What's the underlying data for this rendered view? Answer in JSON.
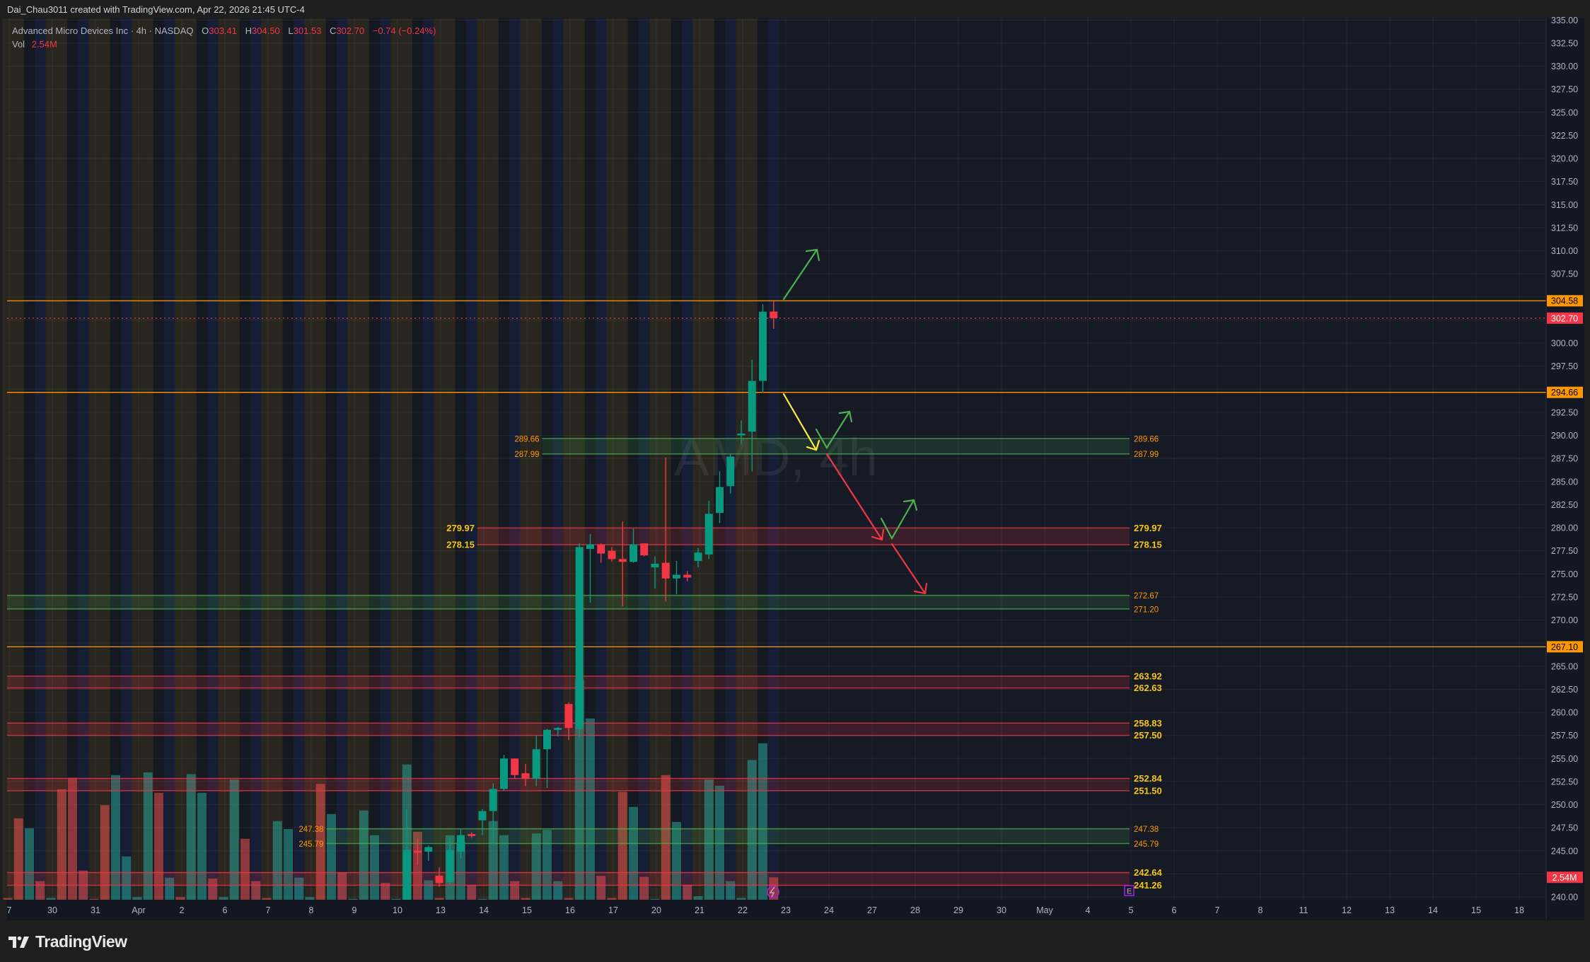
{
  "header": {
    "attribution": "Dai_Chau3011 created with TradingView.com, Apr 22, 2026 21:45 UTC-4"
  },
  "legend": {
    "symbol": "Advanced Micro Devices Inc · 4h · NASDAQ",
    "o_label": "O",
    "open": "303.41",
    "h_label": "H",
    "high": "304.50",
    "l_label": "L",
    "low": "301.53",
    "c_label": "C",
    "close": "302.70",
    "change": "−0.74 (−0.24%)",
    "vol_label": "Vol",
    "vol": "2.54M"
  },
  "watermark": "AMD, 4h",
  "footer": {
    "logo_text": "TradingView"
  },
  "colors": {
    "up": "#089981",
    "down": "#f23645",
    "level": "#ff9800",
    "zone_red": "#f23645",
    "zone_green": "#4caf50",
    "zone_label": "#f5c518",
    "earnings": "#a020f0"
  },
  "chart_data": {
    "type": "candlestick",
    "title": "Advanced Micro Devices Inc · 4h · NASDAQ",
    "ylim": [
      240,
      335
    ],
    "price_ticks": [
      "240.00",
      "245.00",
      "247.50",
      "250.00",
      "252.50",
      "255.00",
      "257.50",
      "260.00",
      "262.50",
      "265.00",
      "270.00",
      "272.50",
      "275.00",
      "277.50",
      "280.00",
      "282.50",
      "285.00",
      "287.50",
      "290.00",
      "292.50",
      "297.50",
      "300.00",
      "307.50",
      "310.00",
      "312.50",
      "315.00",
      "317.50",
      "320.00",
      "322.50",
      "325.00",
      "327.50",
      "330.00",
      "332.50",
      "335.00"
    ],
    "x_labels": [
      "7",
      "30",
      "31",
      "Apr",
      "2",
      "6",
      "7",
      "8",
      "9",
      "10",
      "13",
      "14",
      "15",
      "16",
      "17",
      "20",
      "21",
      "22",
      "23",
      "24",
      "27",
      "28",
      "29",
      "30",
      "May",
      "4",
      "5",
      "6",
      "7",
      "8",
      "11",
      "12",
      "13",
      "14",
      "15",
      "18"
    ],
    "bars_per_day": 4,
    "first_candle_bar": 37,
    "candles": [
      [
        239.5,
        249.5,
        239.0,
        245.1
      ],
      [
        245.0,
        246.3,
        243.5,
        244.8
      ],
      [
        244.9,
        245.6,
        243.9,
        245.4
      ],
      [
        242.3,
        243.2,
        241.1,
        241.5
      ],
      [
        241.6,
        246.4,
        241.3,
        245.1
      ],
      [
        244.9,
        247.3,
        244.2,
        246.7
      ],
      [
        246.8,
        247.0,
        246.4,
        246.6
      ],
      [
        248.3,
        249.5,
        246.7,
        249.3
      ],
      [
        249.3,
        252.3,
        245.7,
        251.7
      ],
      [
        251.7,
        255.4,
        251.5,
        255.0
      ],
      [
        255.0,
        255.0,
        252.8,
        253.2
      ],
      [
        253.4,
        254.4,
        252.0,
        252.8
      ],
      [
        252.8,
        257.5,
        252.0,
        256.0
      ],
      [
        256.0,
        258.2,
        251.8,
        258.1
      ],
      [
        258.1,
        258.4,
        257.4,
        258.3
      ],
      [
        260.9,
        261.1,
        257.0,
        258.3
      ],
      [
        258.2,
        278.3,
        257.3,
        277.9
      ],
      [
        277.7,
        279.3,
        271.9,
        278.2
      ],
      [
        278.2,
        278.3,
        276.2,
        277.2
      ],
      [
        277.5,
        277.9,
        276.3,
        276.6
      ],
      [
        276.6,
        280.7,
        271.5,
        276.3
      ],
      [
        276.3,
        279.9,
        276.2,
        278.2
      ],
      [
        278.3,
        278.3,
        276.9,
        277.0
      ],
      [
        275.7,
        276.9,
        273.4,
        276.1
      ],
      [
        276.2,
        287.6,
        272.0,
        274.5
      ],
      [
        274.5,
        276.4,
        272.8,
        274.9
      ],
      [
        274.9,
        275.3,
        274.2,
        274.6
      ],
      [
        276.4,
        277.8,
        275.7,
        277.3
      ],
      [
        277.1,
        282.9,
        276.6,
        281.5
      ],
      [
        281.6,
        286.1,
        280.5,
        284.4
      ],
      [
        284.5,
        288.0,
        283.7,
        287.7
      ],
      [
        290.0,
        291.6,
        289.1,
        290.2
      ],
      [
        290.4,
        298.2,
        286.1,
        295.9
      ],
      [
        295.9,
        304.2,
        294.6,
        303.4
      ],
      [
        303.41,
        304.5,
        301.53,
        302.7
      ]
    ],
    "volume_m": [
      0.2,
      9.2,
      8.1,
      2.1,
      0.2,
      12.5,
      13.8,
      3.3,
      0.1,
      10.7,
      14.1,
      4.9,
      0.3,
      14.4,
      12.1,
      2.5,
      0.3,
      14.2,
      12.1,
      2.4,
      0.3,
      13.6,
      6.9,
      2.1,
      0.2,
      8.9,
      8.0,
      2.5,
      0.3,
      13.1,
      9.7,
      3.1,
      0.1,
      10.1,
      7.3,
      1.9,
      0.1,
      15.3,
      7.7,
      2.2,
      0.2,
      7.3,
      6.5,
      1.7,
      0.1,
      8.9,
      7.3,
      2.1,
      0.2,
      7.5,
      7.9,
      2.1,
      0.2,
      24.9,
      20.5,
      2.7,
      0.2,
      12.2,
      10.5,
      2.6,
      0.1,
      14.1,
      8.8,
      1.7,
      0.4,
      13.6,
      12.9,
      2.1,
      0.2,
      15.8,
      17.7,
      2.54
    ],
    "volume_dir": [
      "d",
      "d",
      "u",
      "d",
      "u",
      "d",
      "d",
      "d",
      "d",
      "d",
      "u",
      "u",
      "u",
      "u",
      "d",
      "u",
      "d",
      "u",
      "u",
      "d",
      "u",
      "u",
      "d",
      "d",
      "d",
      "u",
      "u",
      "u",
      "u",
      "d",
      "u",
      "d",
      "u",
      "u",
      "u",
      "d",
      "u",
      "u",
      "d",
      "u",
      "d",
      "u",
      "u",
      "d",
      "u",
      "u",
      "u",
      "d",
      "d",
      "u",
      "u",
      "u",
      "d",
      "u",
      "u",
      "d",
      "d",
      "d",
      "u",
      "d",
      "u",
      "d",
      "u",
      "d",
      "u",
      "u",
      "u",
      "u",
      "u",
      "u",
      "u",
      "d"
    ],
    "levels": [
      {
        "price": 304.58,
        "label": "304.58"
      },
      {
        "price": 294.66,
        "label": "294.66"
      },
      {
        "price": 267.1,
        "label": "267.10"
      }
    ],
    "last_price": {
      "price": 302.7,
      "label": "302.70"
    },
    "volume_badge": "2.54M",
    "zones": [
      {
        "kind": "green",
        "high": 289.66,
        "low": 287.99,
        "high_label": "289.66",
        "low_label": "287.99",
        "start_bar": 50,
        "left_labels": true
      },
      {
        "kind": "red",
        "high": 279.97,
        "low": 278.15,
        "high_label": "279.97",
        "low_label": "278.15",
        "start_bar": 44,
        "left_labels": true
      },
      {
        "kind": "green",
        "high": 272.67,
        "low": 271.2,
        "high_label": "272.67",
        "low_label": "271.20",
        "start_bar": 0,
        "left_labels": false
      },
      {
        "kind": "red",
        "high": 263.92,
        "low": 262.63,
        "high_label": "263.92",
        "low_label": "262.63",
        "start_bar": 0,
        "left_labels": false
      },
      {
        "kind": "red",
        "high": 258.83,
        "low": 257.5,
        "high_label": "258.83",
        "low_label": "257.50",
        "start_bar": 0,
        "left_labels": false
      },
      {
        "kind": "red",
        "high": 252.84,
        "low": 251.5,
        "high_label": "252.84",
        "low_label": "251.50",
        "start_bar": 0,
        "left_labels": false
      },
      {
        "kind": "green",
        "high": 247.38,
        "low": 245.79,
        "high_label": "247.38",
        "low_label": "245.79",
        "start_bar": 30,
        "left_labels": true
      },
      {
        "kind": "red",
        "high": 242.64,
        "low": 241.26,
        "high_label": "242.64",
        "low_label": "241.26",
        "start_bar": 0,
        "left_labels": false
      }
    ],
    "zone_end_bar": 104,
    "earnings_marker": "E"
  }
}
